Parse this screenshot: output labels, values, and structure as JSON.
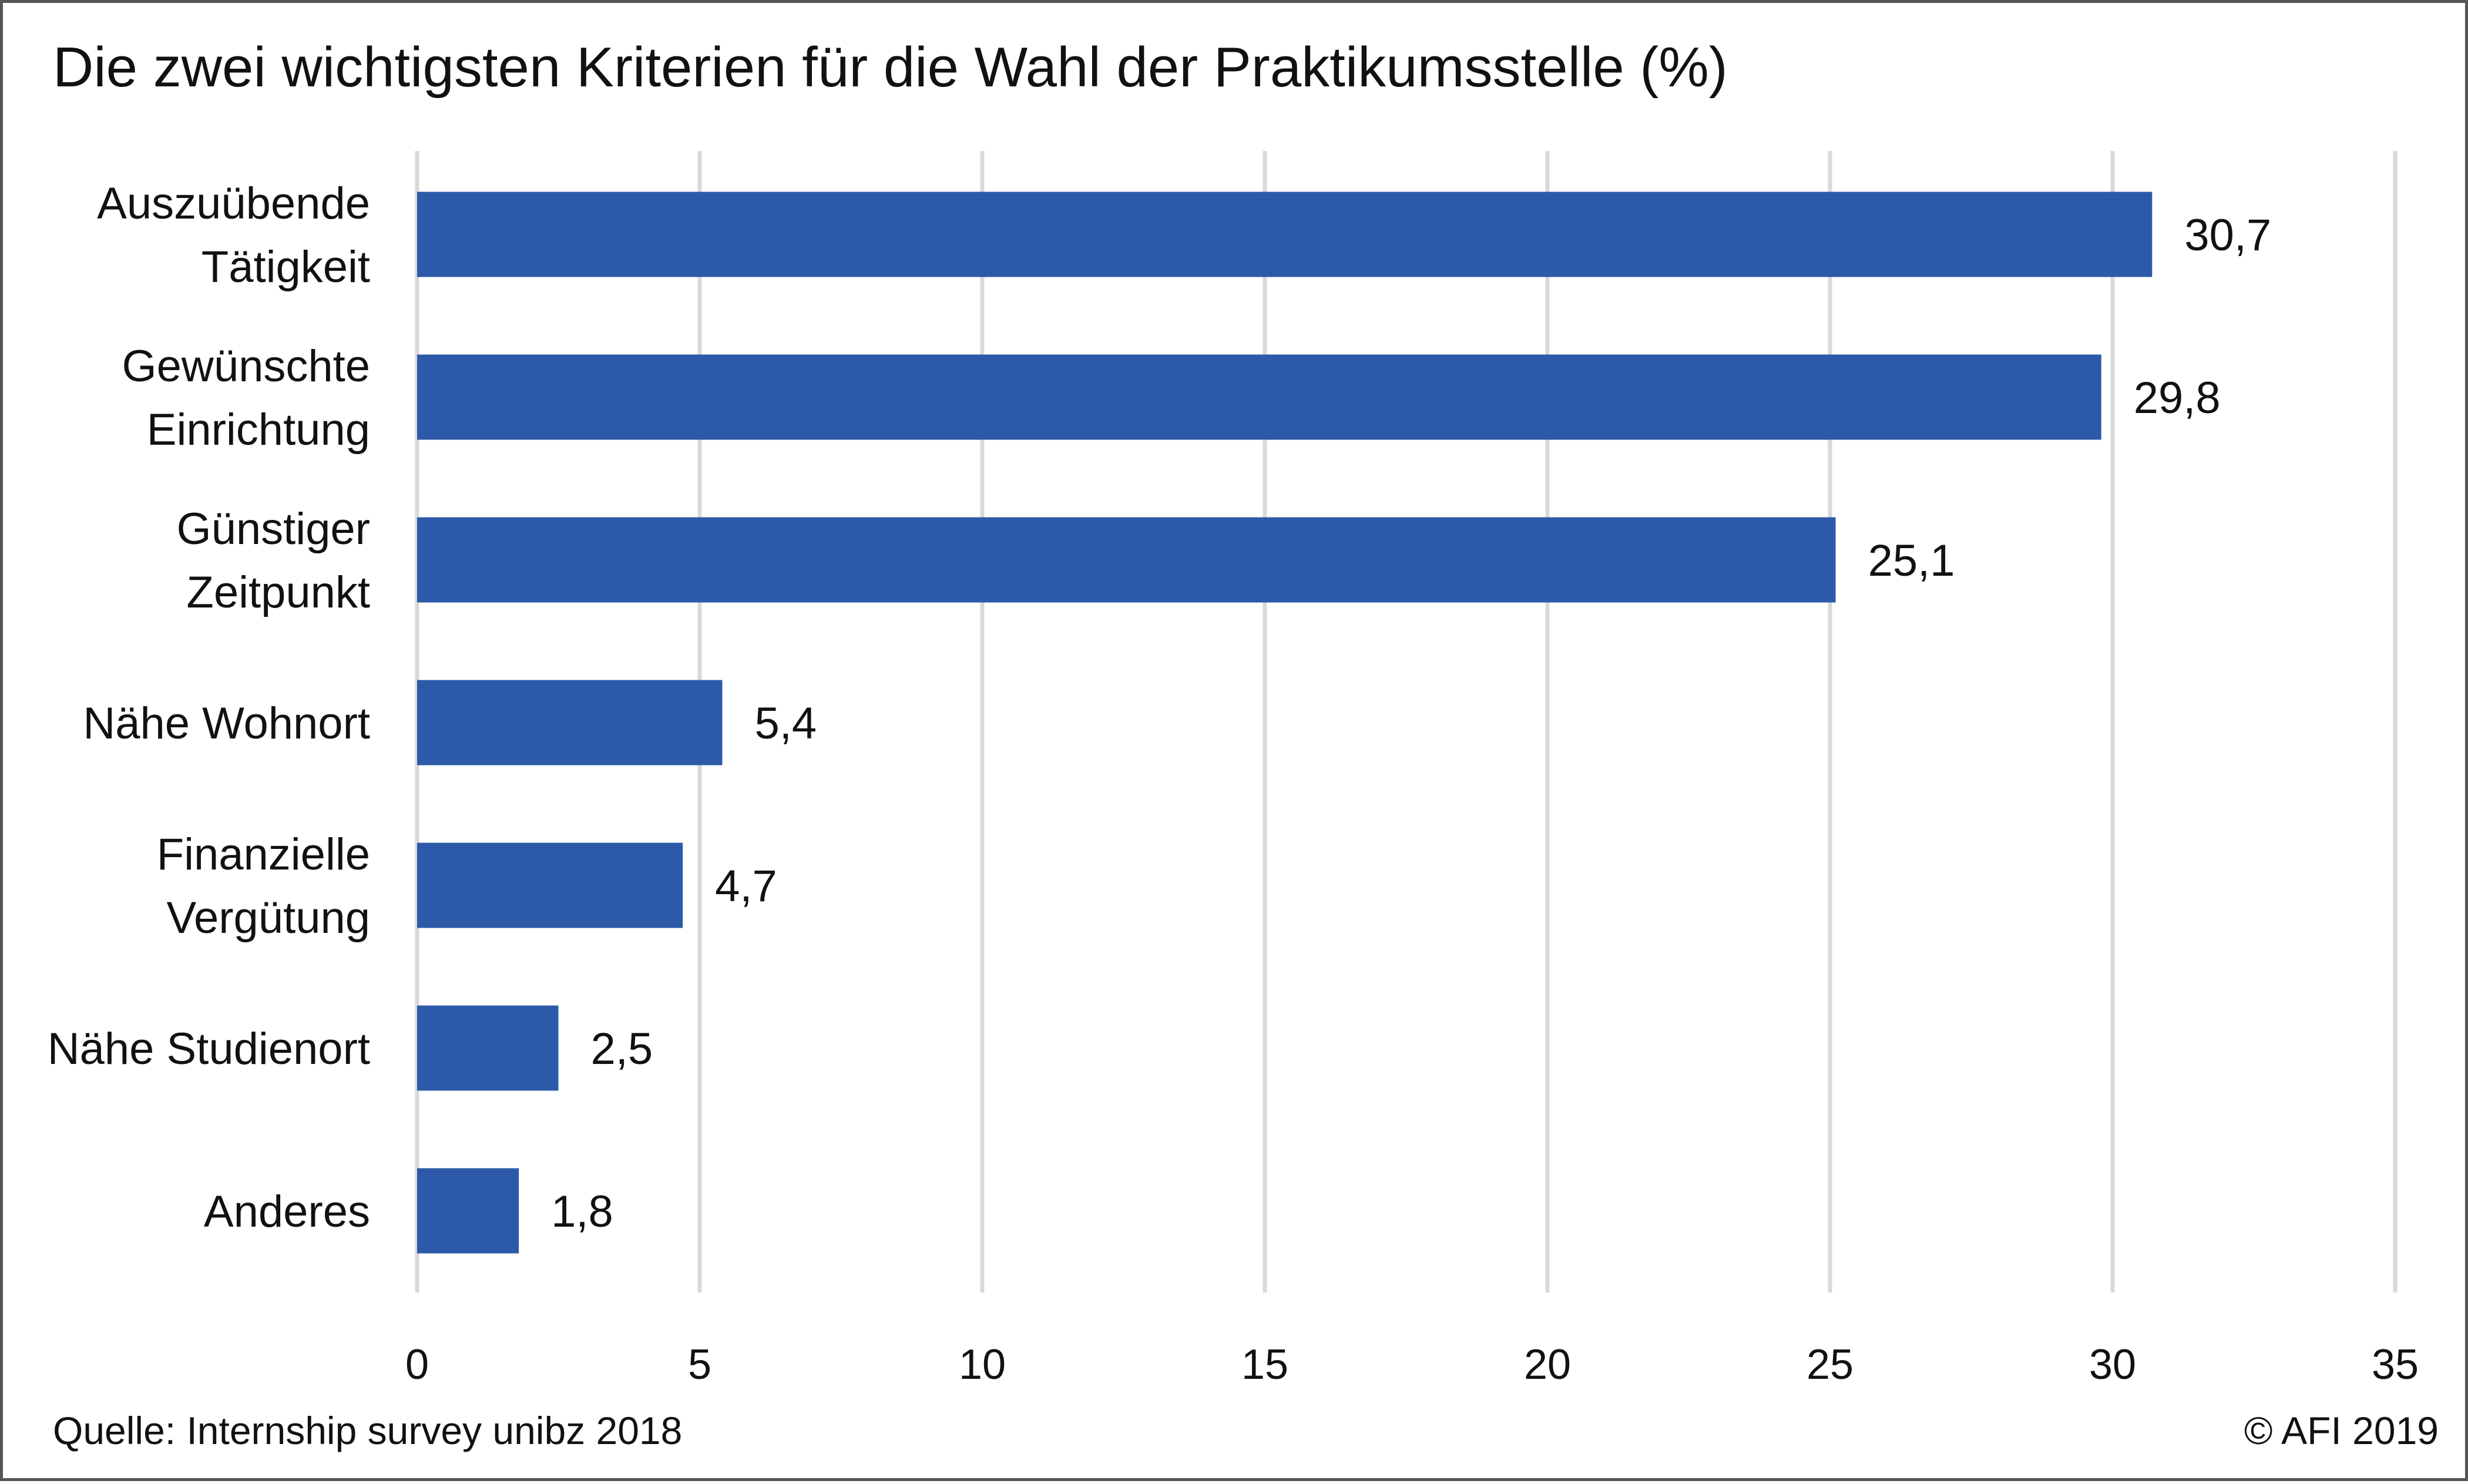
{
  "chart_data": {
    "type": "bar",
    "orientation": "horizontal",
    "title": "Die zwei wichtigsten Kriterien für die Wahl der Praktikumsstelle (%)",
    "categories": [
      [
        "Auszuübende",
        "Tätigkeit"
      ],
      [
        "Gewünschte",
        "Einrichtung"
      ],
      [
        "Günstiger",
        "Zeitpunkt"
      ],
      [
        "Nähe Wohnort"
      ],
      [
        "Finanzielle",
        "Vergütung"
      ],
      [
        "Nähe Studienort"
      ],
      [
        "Anderes"
      ]
    ],
    "values": [
      30.7,
      29.8,
      25.1,
      5.4,
      4.7,
      2.5,
      1.8
    ],
    "value_labels": [
      "30,7",
      "29,8",
      "25,1",
      "5,4",
      "4,7",
      "2,5",
      "1,8"
    ],
    "xlim": [
      0,
      35
    ],
    "xticks": [
      0,
      5,
      10,
      15,
      20,
      25,
      30,
      35
    ],
    "xtick_labels": [
      "0",
      "5",
      "10",
      "15",
      "20",
      "25",
      "30",
      "35"
    ],
    "grid": true,
    "legend": "none",
    "bar_color": "#2C5AA8",
    "grid_color": "#D9D9D9"
  },
  "footer": {
    "source": "Quelle: Internship survey unibz 2018",
    "copyright": "© AFI 2019"
  }
}
